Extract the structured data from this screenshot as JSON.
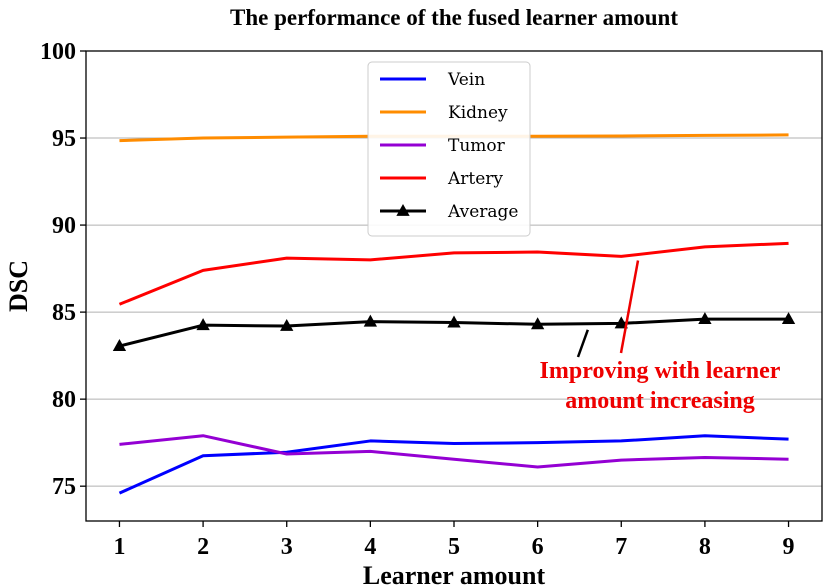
{
  "chart_data": {
    "type": "line",
    "title": "The performance of the fused learner amount",
    "xlabel": "Learner amount",
    "ylabel": "DSC",
    "x": [
      1,
      2,
      3,
      4,
      5,
      6,
      7,
      8,
      9
    ],
    "xticks": [
      "1",
      "2",
      "3",
      "4",
      "5",
      "6",
      "7",
      "8",
      "9"
    ],
    "yticks": [
      "75",
      "80",
      "85",
      "90",
      "95",
      "100"
    ],
    "xlim": [
      0.6,
      9.4
    ],
    "ylim": [
      73,
      100
    ],
    "grid": "horizontal",
    "legend": "top-center",
    "series": [
      {
        "name": "Vein",
        "color": "#0000ff",
        "marker": "none",
        "values": [
          74.6,
          76.75,
          76.95,
          77.6,
          77.45,
          77.5,
          77.6,
          77.9,
          77.7
        ]
      },
      {
        "name": "Kidney",
        "color": "#ff8c00",
        "marker": "none",
        "values": [
          94.85,
          95.0,
          95.05,
          95.1,
          95.1,
          95.1,
          95.12,
          95.15,
          95.18
        ]
      },
      {
        "name": "Tumor",
        "color": "#9400d3",
        "marker": "none",
        "values": [
          77.4,
          77.9,
          76.85,
          77.0,
          76.55,
          76.1,
          76.5,
          76.65,
          76.55
        ]
      },
      {
        "name": "Artery",
        "color": "#ff0000",
        "marker": "none",
        "values": [
          85.45,
          87.4,
          88.1,
          88.0,
          88.4,
          88.45,
          88.2,
          88.75,
          88.95
        ]
      },
      {
        "name": "Average",
        "color": "#000000",
        "marker": "triangle",
        "values": [
          83.05,
          84.25,
          84.2,
          84.45,
          84.4,
          84.3,
          84.35,
          84.6,
          84.6
        ]
      }
    ],
    "annotation": {
      "lines": [
        "Improving with learner",
        "amount increasing"
      ],
      "color": "#ee0000",
      "arrow_targets": [
        {
          "series": "Average",
          "x": 6.6
        },
        {
          "series": "Artery",
          "x": 7.2
        }
      ]
    }
  }
}
